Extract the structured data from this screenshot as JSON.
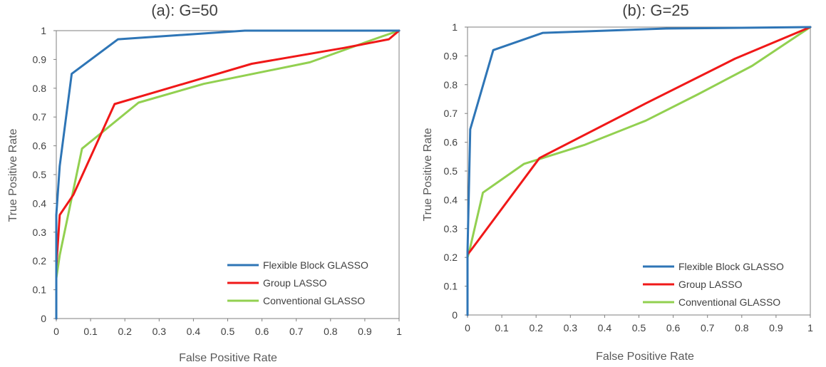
{
  "colors": {
    "flexible": "#2E75B6",
    "group": "#F01818",
    "conventional": "#92D050",
    "axis": "#7f7f7f",
    "text": "#404040"
  },
  "chart_data": [
    {
      "type": "line",
      "title": "(a): G=50",
      "xlabel": "False Positive Rate",
      "ylabel": "True Positive Rate",
      "xlim": [
        0,
        1
      ],
      "ylim": [
        0,
        1
      ],
      "xticks": [
        "0",
        "0.1",
        "0.2",
        "0.3",
        "0.4",
        "0.5",
        "0.6",
        "0.7",
        "0.8",
        "0.9",
        "1"
      ],
      "yticks": [
        "0",
        "0.1",
        "0.2",
        "0.3",
        "0.4",
        "0.5",
        "0.6",
        "0.7",
        "0.8",
        "0.9",
        "1"
      ],
      "grid": false,
      "legend_position": "bottom-right",
      "series": [
        {
          "name": "Flexible Block GLASSO",
          "color": "#2E75B6",
          "x": [
            0,
            0,
            0.01,
            0.045,
            0.18,
            0.55,
            1
          ],
          "y": [
            0,
            0.36,
            0.53,
            0.85,
            0.97,
            1.0,
            1.0
          ]
        },
        {
          "name": "Group LASSO",
          "color": "#F01818",
          "x": [
            0,
            0,
            0.01,
            0.05,
            0.17,
            0.57,
            0.84,
            0.97,
            1
          ],
          "y": [
            0,
            0.18,
            0.36,
            0.43,
            0.745,
            0.885,
            0.94,
            0.97,
            1.0
          ]
        },
        {
          "name": "Conventional GLASSO",
          "color": "#92D050",
          "x": [
            0,
            0,
            0.01,
            0.075,
            0.24,
            0.43,
            0.74,
            0.95,
            1
          ],
          "y": [
            0,
            0.14,
            0.22,
            0.59,
            0.75,
            0.815,
            0.89,
            0.98,
            1.0
          ]
        }
      ]
    },
    {
      "type": "line",
      "title": "(b): G=25",
      "xlabel": "False Positive Rate",
      "ylabel": "True Positive Rate",
      "xlim": [
        0,
        1
      ],
      "ylim": [
        0,
        1
      ],
      "xticks": [
        "0",
        "0.1",
        "0.2",
        "0.3",
        "0.4",
        "0.5",
        "0.6",
        "0.7",
        "0.8",
        "0.9",
        "1"
      ],
      "yticks": [
        "0",
        "0.1",
        "0.2",
        "0.3",
        "0.4",
        "0.5",
        "0.6",
        "0.7",
        "0.8",
        "0.9",
        "1"
      ],
      "grid": false,
      "legend_position": "bottom-right",
      "series": [
        {
          "name": "Flexible Block GLASSO",
          "color": "#2E75B6",
          "x": [
            0,
            0,
            0.008,
            0.075,
            0.22,
            0.58,
            1
          ],
          "y": [
            0,
            0.22,
            0.645,
            0.92,
            0.98,
            0.995,
            1.0
          ]
        },
        {
          "name": "Group LASSO",
          "color": "#F01818",
          "x": [
            0,
            0,
            0.01,
            0.21,
            0.52,
            0.78,
            1
          ],
          "y": [
            0,
            0.21,
            0.225,
            0.545,
            0.735,
            0.89,
            1.0
          ]
        },
        {
          "name": "Conventional GLASSO",
          "color": "#92D050",
          "x": [
            0,
            0,
            0.005,
            0.045,
            0.165,
            0.34,
            0.52,
            0.67,
            0.83,
            1
          ],
          "y": [
            0,
            0.2,
            0.22,
            0.425,
            0.525,
            0.59,
            0.675,
            0.765,
            0.865,
            1.0
          ]
        }
      ]
    }
  ]
}
